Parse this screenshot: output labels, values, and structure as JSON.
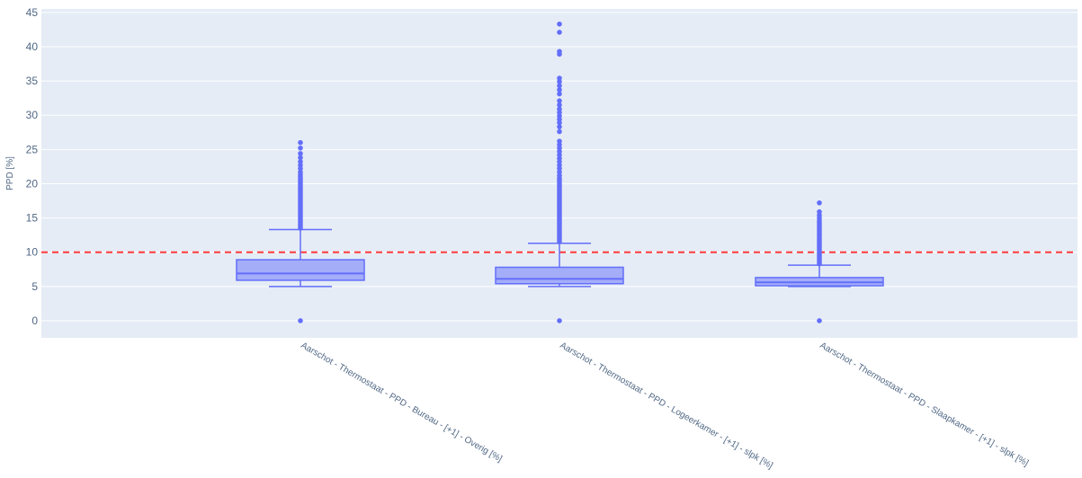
{
  "chart_data": {
    "type": "box",
    "ylabel": "PPD [%]",
    "xlabel": "",
    "title": "",
    "ylim": [
      -2.5,
      45.5
    ],
    "yticks": [
      0,
      5,
      10,
      15,
      20,
      25,
      30,
      35,
      40,
      45
    ],
    "grid": true,
    "reference_line": {
      "y": 10,
      "style": "dashed",
      "color": "#ff3b3b"
    },
    "colors": {
      "box": "#636efa",
      "plot_bg": "#e5ecf6",
      "grid": "#ffffff",
      "tick_text": "#506784"
    },
    "categories": [
      "Aarschot - Thermostaat - PPD - Bureau - [+1] - Overig [%]",
      "Aarschot - Thermostaat - PPD - Logeerkamer - [+1] - slpk [%]",
      "Aarschot - Thermostaat - PPD - Slaapkamer - [+1] - slpk [%]"
    ],
    "boxes": [
      {
        "min": 5.0,
        "q1": 5.9,
        "median": 6.9,
        "q3": 8.9,
        "upper_fence": 13.3,
        "outliers": [
          0.0,
          13.5,
          13.8,
          14.1,
          14.4,
          14.7,
          15.0,
          15.3,
          15.6,
          15.9,
          16.2,
          16.5,
          16.8,
          17.1,
          17.4,
          17.7,
          18.0,
          18.3,
          18.6,
          18.9,
          19.2,
          19.5,
          19.8,
          20.1,
          20.4,
          20.7,
          21.0,
          21.3,
          21.7,
          22.2,
          22.7,
          23.2,
          23.8,
          24.4,
          25.2,
          26.0
        ]
      },
      {
        "min": 5.0,
        "q1": 5.4,
        "median": 6.1,
        "q3": 7.8,
        "upper_fence": 11.3,
        "outliers": [
          0.0,
          11.5,
          11.8,
          12.1,
          12.4,
          12.7,
          13.0,
          13.3,
          13.6,
          13.9,
          14.2,
          14.5,
          14.8,
          15.1,
          15.4,
          15.7,
          16.0,
          16.3,
          16.6,
          16.9,
          17.2,
          17.5,
          17.8,
          18.1,
          18.4,
          18.7,
          19.0,
          19.3,
          19.6,
          19.9,
          20.2,
          20.5,
          20.8,
          21.2,
          21.7,
          22.2,
          22.7,
          23.2,
          23.7,
          24.2,
          24.7,
          25.2,
          25.7,
          26.2,
          27.6,
          28.3,
          28.9,
          29.4,
          29.9,
          30.4,
          30.9,
          31.5,
          32.1,
          33.1,
          33.7,
          34.3,
          34.9,
          35.4,
          38.9,
          39.3,
          42.1,
          43.3
        ]
      },
      {
        "min": 5.0,
        "q1": 5.1,
        "median": 5.6,
        "q3": 6.3,
        "upper_fence": 8.1,
        "outliers": [
          0.0,
          8.3,
          8.6,
          8.9,
          9.2,
          9.5,
          9.8,
          10.1,
          10.4,
          10.7,
          11.0,
          11.3,
          11.6,
          11.9,
          12.2,
          12.5,
          12.8,
          13.1,
          13.4,
          13.7,
          14.0,
          14.3,
          14.6,
          15.0,
          15.4,
          15.9,
          17.2
        ]
      }
    ]
  }
}
